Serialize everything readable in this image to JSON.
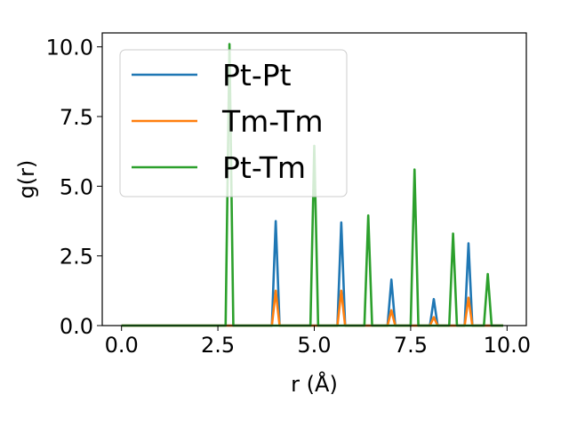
{
  "chart_data": {
    "type": "line",
    "title": "",
    "xlabel": "r (Å)",
    "ylabel": "g(r)",
    "xlim": [
      -0.5,
      10.5
    ],
    "ylim": [
      0,
      10.5
    ],
    "xticks": [
      0.0,
      2.5,
      5.0,
      7.5,
      10.0
    ],
    "xtick_labels": [
      "0.0",
      "2.5",
      "5.0",
      "7.5",
      "10.0"
    ],
    "yticks": [
      0.0,
      2.5,
      5.0,
      7.5,
      10.0
    ],
    "ytick_labels": [
      "0.0",
      "2.5",
      "5.0",
      "7.5",
      "10.0"
    ],
    "grid": false,
    "legend_position": "upper-left",
    "series": [
      {
        "name": "Pt-Pt",
        "color": "#1f77b4",
        "x": [
          0.0,
          3.9,
          4.0,
          4.1,
          5.6,
          5.7,
          5.8,
          6.9,
          7.0,
          7.1,
          8.0,
          8.1,
          8.2,
          8.9,
          9.0,
          9.1,
          9.9
        ],
        "y": [
          0.0,
          0.0,
          3.75,
          0.0,
          0.0,
          3.7,
          0.0,
          0.0,
          1.65,
          0.0,
          0.0,
          0.95,
          0.0,
          0.0,
          2.95,
          0.0,
          0.0
        ]
      },
      {
        "name": "Tm-Tm",
        "color": "#ff7f0e",
        "x": [
          0.0,
          3.9,
          4.0,
          4.1,
          5.6,
          5.7,
          5.8,
          6.9,
          7.0,
          7.1,
          8.0,
          8.1,
          8.2,
          8.9,
          9.0,
          9.1,
          9.9
        ],
        "y": [
          0.0,
          0.0,
          1.25,
          0.0,
          0.0,
          1.25,
          0.0,
          0.0,
          0.55,
          0.0,
          0.0,
          0.3,
          0.0,
          0.0,
          1.0,
          0.0,
          0.0
        ]
      },
      {
        "name": "Pt-Tm",
        "color": "#2ca02c",
        "x": [
          0.0,
          2.7,
          2.8,
          2.9,
          4.9,
          5.0,
          5.1,
          6.3,
          6.4,
          6.5,
          7.5,
          7.6,
          7.7,
          8.5,
          8.6,
          8.7,
          9.4,
          9.5,
          9.6,
          9.9
        ],
        "y": [
          0.0,
          0.0,
          10.1,
          0.0,
          0.0,
          6.45,
          0.0,
          0.0,
          3.95,
          0.0,
          0.0,
          5.6,
          0.0,
          0.0,
          3.3,
          0.0,
          0.0,
          1.85,
          0.0,
          0.0
        ]
      }
    ]
  }
}
